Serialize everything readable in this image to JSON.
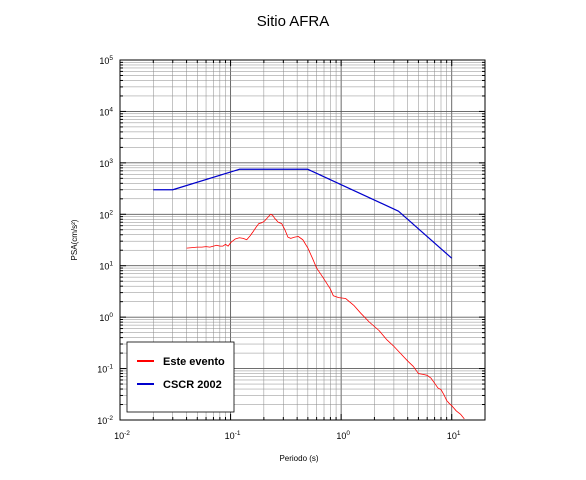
{
  "chart_data": {
    "type": "line",
    "title": "Sitio AFRA",
    "xlabel": "Periodo (s)",
    "ylabel": "PSA(cm/s²)",
    "x_scale": "log",
    "y_scale": "log",
    "xlim": [
      0.01,
      20
    ],
    "ylim": [
      0.01,
      100000
    ],
    "grid": true,
    "legend_position": "bottom-left",
    "x_ticks": [
      {
        "base": "10",
        "exp": "-2",
        "value": 0.01
      },
      {
        "base": "10",
        "exp": "-1",
        "value": 0.1
      },
      {
        "base": "10",
        "exp": "0",
        "value": 1
      },
      {
        "base": "10",
        "exp": "1",
        "value": 10
      }
    ],
    "y_ticks": [
      {
        "base": "10",
        "exp": "-2",
        "value": 0.01
      },
      {
        "base": "10",
        "exp": "-1",
        "value": 0.1
      },
      {
        "base": "10",
        "exp": "0",
        "value": 1
      },
      {
        "base": "10",
        "exp": "1",
        "value": 10
      },
      {
        "base": "10",
        "exp": "2",
        "value": 100
      },
      {
        "base": "10",
        "exp": "3",
        "value": 1000
      },
      {
        "base": "10",
        "exp": "4",
        "value": 10000
      },
      {
        "base": "10",
        "exp": "5",
        "value": 100000
      }
    ],
    "series": [
      {
        "name": "Este evento",
        "color": "#ff0000",
        "points": [
          [
            0.04,
            22
          ],
          [
            0.045,
            22.5
          ],
          [
            0.05,
            23
          ],
          [
            0.055,
            23
          ],
          [
            0.06,
            23.5
          ],
          [
            0.065,
            23
          ],
          [
            0.07,
            24
          ],
          [
            0.075,
            25
          ],
          [
            0.08,
            24
          ],
          [
            0.085,
            24
          ],
          [
            0.09,
            26
          ],
          [
            0.095,
            24
          ],
          [
            0.1,
            28
          ],
          [
            0.11,
            33
          ],
          [
            0.12,
            35
          ],
          [
            0.13,
            34
          ],
          [
            0.14,
            32
          ],
          [
            0.15,
            38
          ],
          [
            0.16,
            46
          ],
          [
            0.17,
            56
          ],
          [
            0.18,
            66
          ],
          [
            0.19,
            68
          ],
          [
            0.2,
            72
          ],
          [
            0.21,
            80
          ],
          [
            0.22,
            90
          ],
          [
            0.23,
            100
          ],
          [
            0.24,
            96
          ],
          [
            0.25,
            84
          ],
          [
            0.27,
            70
          ],
          [
            0.29,
            66
          ],
          [
            0.31,
            50
          ],
          [
            0.33,
            36
          ],
          [
            0.35,
            34
          ],
          [
            0.38,
            36
          ],
          [
            0.41,
            37
          ],
          [
            0.45,
            32
          ],
          [
            0.5,
            22
          ],
          [
            0.55,
            14
          ],
          [
            0.6,
            9
          ],
          [
            0.65,
            7
          ],
          [
            0.7,
            5.5
          ],
          [
            0.8,
            3.5
          ],
          [
            0.85,
            2.6
          ],
          [
            0.95,
            2.4
          ],
          [
            1.1,
            2.3
          ],
          [
            1.3,
            1.7
          ],
          [
            1.5,
            1.2
          ],
          [
            1.8,
            0.8
          ],
          [
            2.2,
            0.55
          ],
          [
            2.6,
            0.36
          ],
          [
            3,
            0.27
          ],
          [
            3.5,
            0.19
          ],
          [
            4,
            0.14
          ],
          [
            4.5,
            0.11
          ],
          [
            5,
            0.08
          ],
          [
            5.5,
            0.077
          ],
          [
            6,
            0.074
          ],
          [
            6.5,
            0.065
          ],
          [
            7,
            0.052
          ],
          [
            7.5,
            0.042
          ],
          [
            8,
            0.039
          ],
          [
            8.5,
            0.031
          ],
          [
            9,
            0.024
          ],
          [
            9.5,
            0.021
          ],
          [
            10,
            0.019
          ],
          [
            11,
            0.015
          ],
          [
            12,
            0.013
          ],
          [
            13,
            0.0105
          ]
        ]
      },
      {
        "name": "CSCR 2002",
        "color": "#0000cc",
        "points": [
          [
            0.02,
            300
          ],
          [
            0.03,
            300
          ],
          [
            0.12,
            750
          ],
          [
            0.5,
            750
          ],
          [
            3.3,
            115
          ],
          [
            10,
            14
          ]
        ]
      }
    ]
  }
}
